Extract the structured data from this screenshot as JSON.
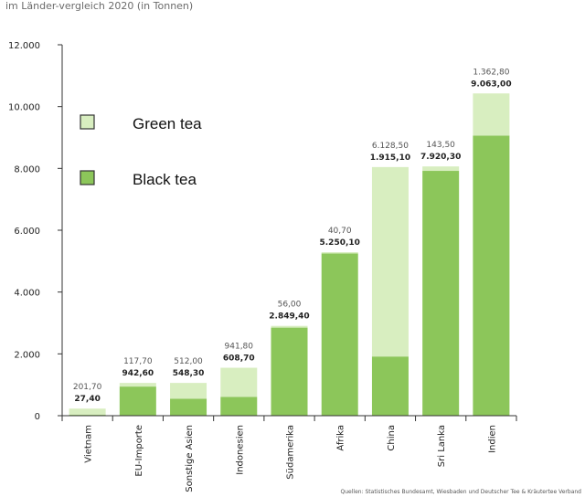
{
  "chart_data": {
    "type": "bar",
    "stacked": true,
    "title": "im Länder-vergleich 2020 (in Tonnen)",
    "categories": [
      "Vietnam",
      "EU-Importe",
      "Sonstige Asien",
      "Indonesien",
      "Südamerika",
      "Afrika",
      "China",
      "Sri Lanka",
      "Indien"
    ],
    "series": [
      {
        "name": "Black tea",
        "color": "#8cc65a",
        "values": [
          27.4,
          942.6,
          548.3,
          608.7,
          2849.4,
          5250.1,
          1915.1,
          7920.3,
          9063.0
        ]
      },
      {
        "name": "Green tea",
        "color": "#d8eec0",
        "values": [
          201.7,
          117.7,
          512.0,
          941.8,
          56.0,
          40.7,
          6128.5,
          143.5,
          1362.8
        ]
      }
    ],
    "value_labels": {
      "top": [
        "201,70",
        "117,70",
        "512,00",
        "941,80",
        "56,00",
        "40,70",
        "6.128,50",
        "143,50",
        "1.362,80"
      ],
      "bottom": [
        "27,40",
        "942,60",
        "548,30",
        "608,70",
        "2.849,40",
        "5.250,10",
        "1.915,10",
        "7.920,30",
        "9.063,00"
      ]
    },
    "y_ticks": [
      "0",
      "2.000",
      "4.000",
      "6.000",
      "8.000",
      "10.000",
      "12.000"
    ],
    "ylim": [
      0,
      12000
    ],
    "grid": false,
    "legend": {
      "position": "top-left",
      "items": [
        "Green tea",
        "Black tea"
      ]
    },
    "source": "Quellen: Statistisches Bundesamt, Wiesbaden und Deutscher Tee & Kräutertee Verband"
  }
}
